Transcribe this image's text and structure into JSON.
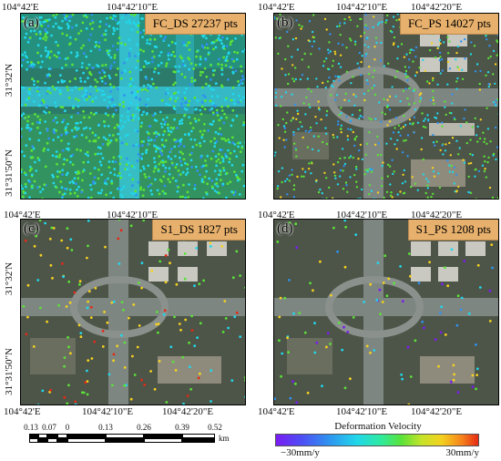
{
  "panels": [
    {
      "letter": "(a)",
      "title": "FC_DS 27237 pts"
    },
    {
      "letter": "(b)",
      "title": "FC_PS 14027 pts"
    },
    {
      "letter": "(c)",
      "title": "S1_DS 1827 pts"
    },
    {
      "letter": "(d)",
      "title": "S1_PS 1208 pts"
    }
  ],
  "coords": {
    "lon_1": "104°42'E",
    "lon_2": "104°42'10\"E",
    "lon_3": "104°42'20\"E",
    "lat_1": "31°32'N",
    "lat_2": "31°31'50\"N"
  },
  "scalebar": {
    "labels": [
      "0.13",
      "0.07",
      "0",
      "0.13",
      "0.26",
      "0.39",
      "0.52"
    ],
    "unit": "km"
  },
  "legend": {
    "title": "Deformation Velocity",
    "min_label": "−30mm/y",
    "max_label": "30mm/y",
    "colors": [
      "#7a1cf2",
      "#2f92ef",
      "#21d7ea",
      "#5ae238",
      "#f4d11f",
      "#e52a14"
    ]
  }
}
